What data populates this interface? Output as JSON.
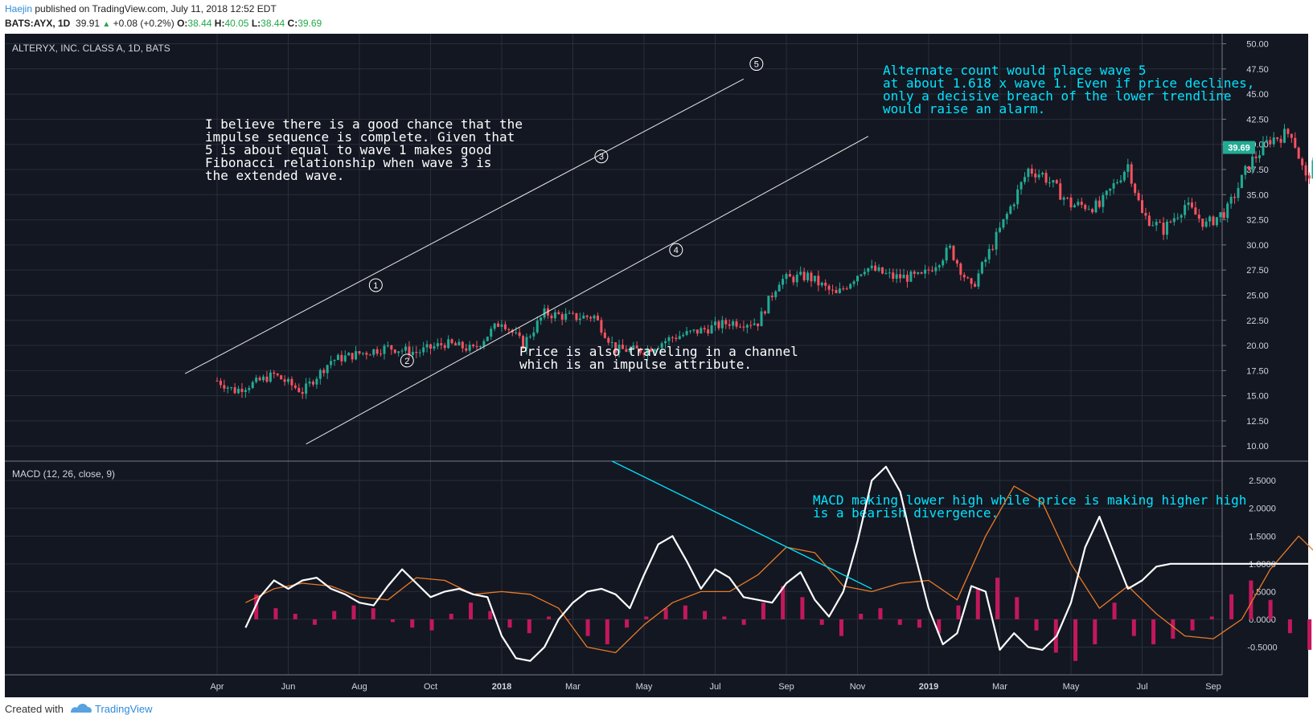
{
  "header": {
    "author": "Haejin",
    "published": " published on TradingView.com, July 11, 2018 12:52 EDT",
    "symbol": "BATS:AYX, 1D",
    "last": "39.91",
    "change": "+0.08 (+0.2%)",
    "o_label": "O:",
    "open": "38.44",
    "h_label": "H:",
    "high": "40.05",
    "l_label": "L:",
    "low": "38.44",
    "c_label": "C:",
    "close": "39.69"
  },
  "footer": {
    "created_with": "Created with",
    "brand": "TradingView"
  },
  "colors": {
    "background": "#131722",
    "grid": "#2a2e39",
    "up": "#22ab94",
    "down": "#f7525f",
    "macd_line": "#ffffff",
    "signal_line": "#e87b26",
    "histogram": "#c2185b",
    "annotation": "#00e5ff"
  },
  "chart_data": [
    {
      "type": "candlestick",
      "title": "ALTERYX, INC. CLASS A, 1D, BATS",
      "x_ticks": [
        "Apr",
        "Jun",
        "Aug",
        "Oct",
        "2018",
        "Mar",
        "May",
        "Jul",
        "Sep",
        "Nov",
        "2019",
        "Mar",
        "May",
        "Jul",
        "Sep"
      ],
      "y_ticks": [
        "50.00",
        "47.50",
        "45.00",
        "42.50",
        "40.00",
        "37.50",
        "35.00",
        "32.50",
        "30.00",
        "27.50",
        "25.00",
        "22.50",
        "20.00",
        "17.50",
        "15.00",
        "12.50",
        "10.00"
      ],
      "ylim": [
        8.5,
        51
      ],
      "last_price_label": "39.69",
      "grid": true,
      "series_closes": [
        {
          "x": 0.0,
          "y": 16.5
        },
        {
          "x": 0.25,
          "y": 15.5
        },
        {
          "x": 0.5,
          "y": 16.2
        },
        {
          "x": 0.8,
          "y": 17.1
        },
        {
          "x": 1.2,
          "y": 15.4
        },
        {
          "x": 1.6,
          "y": 18.5
        },
        {
          "x": 2.0,
          "y": 19.2
        },
        {
          "x": 2.4,
          "y": 19.8
        },
        {
          "x": 2.8,
          "y": 19.3
        },
        {
          "x": 3.2,
          "y": 20.2
        },
        {
          "x": 3.6,
          "y": 19.6
        },
        {
          "x": 4.0,
          "y": 22.5
        },
        {
          "x": 4.3,
          "y": 20.1
        },
        {
          "x": 4.6,
          "y": 23.2
        },
        {
          "x": 5.0,
          "y": 22.8
        },
        {
          "x": 5.3,
          "y": 22.9
        },
        {
          "x": 5.6,
          "y": 19.6
        },
        {
          "x": 6.0,
          "y": 19.5
        },
        {
          "x": 6.4,
          "y": 20.8
        },
        {
          "x": 6.8,
          "y": 21.5
        },
        {
          "x": 7.2,
          "y": 22.3
        },
        {
          "x": 7.6,
          "y": 22.3
        },
        {
          "x": 7.9,
          "y": 26.5
        },
        {
          "x": 8.3,
          "y": 26.9
        },
        {
          "x": 8.7,
          "y": 25.0
        },
        {
          "x": 9.1,
          "y": 27.8
        },
        {
          "x": 9.5,
          "y": 26.8
        },
        {
          "x": 9.9,
          "y": 26.8
        },
        {
          "x": 10.3,
          "y": 29.6
        },
        {
          "x": 10.6,
          "y": 25.6
        },
        {
          "x": 11.0,
          "y": 31.5
        },
        {
          "x": 11.2,
          "y": 34.5
        },
        {
          "x": 11.4,
          "y": 37.5
        },
        {
          "x": 11.6,
          "y": 37.0
        },
        {
          "x": 12.0,
          "y": 34.0
        },
        {
          "x": 12.4,
          "y": 33.8
        },
        {
          "x": 12.8,
          "y": 38.0
        },
        {
          "x": 13.0,
          "y": 33.0
        },
        {
          "x": 13.3,
          "y": 31.5
        },
        {
          "x": 13.6,
          "y": 34.0
        },
        {
          "x": 13.9,
          "y": 32.0
        },
        {
          "x": 14.2,
          "y": 33.5
        },
        {
          "x": 14.5,
          "y": 38.0
        },
        {
          "x": 14.8,
          "y": 40.5
        },
        {
          "x": 15.1,
          "y": 41.2
        },
        {
          "x": 15.3,
          "y": 36.5
        },
        {
          "x": 15.5,
          "y": 39.0
        },
        {
          "x": 15.7,
          "y": 40.5
        },
        {
          "x": 15.9,
          "y": 39.7
        }
      ]
    },
    {
      "type": "line",
      "title": "MACD (12, 26, close, 9)",
      "y_ticks": [
        "2.5000",
        "2.0000",
        "1.5000",
        "1.0000",
        "0.5000",
        "0.0000",
        "-0.5000"
      ],
      "ylim": [
        -1.0,
        2.85
      ],
      "series": [
        {
          "x": [
            0.4,
            0.6,
            0.8,
            1.0,
            1.2,
            1.4,
            1.6,
            1.8,
            2.0,
            2.2,
            2.4,
            2.6,
            2.8,
            3.0,
            3.2,
            3.4,
            3.6,
            3.8,
            4.0,
            4.2,
            4.4,
            4.6,
            4.8,
            5.0,
            5.2,
            5.4,
            5.6,
            5.8,
            6.0,
            6.2,
            6.4,
            6.6,
            6.8,
            7.0,
            7.2,
            7.4,
            7.6,
            7.8,
            8.0,
            8.2,
            8.4,
            8.6,
            8.8,
            9.0,
            9.2,
            9.4,
            9.6,
            9.8,
            10.0,
            10.2,
            10.4,
            10.6,
            10.8,
            11.0,
            11.2,
            11.4,
            11.6,
            11.8,
            12.0,
            12.2,
            12.4,
            12.6,
            12.8,
            13.0,
            13.2,
            13.4,
            13.6,
            13.8,
            14.0,
            14.2,
            14.4,
            14.6,
            14.8,
            15.0,
            15.2,
            15.4,
            15.6,
            15.8,
            15.9
          ],
          "values": [
            -0.15,
            0.4,
            0.7,
            0.55,
            0.7,
            0.75,
            0.55,
            0.45,
            0.3,
            0.25,
            0.6,
            0.9,
            0.65,
            0.4,
            0.5,
            0.55,
            0.45,
            0.4,
            -0.3,
            -0.7,
            -0.75,
            -0.5,
            0.0,
            0.3,
            0.5,
            0.55,
            0.45,
            0.2,
            0.8,
            1.35,
            1.5,
            1.05,
            0.55,
            0.9,
            0.75,
            0.4,
            0.35,
            0.3,
            0.65,
            0.85,
            0.35,
            0.05,
            0.5,
            1.4,
            2.5,
            2.75,
            2.3,
            1.2,
            0.2,
            -0.45,
            -0.25,
            0.6,
            0.5,
            -0.55,
            -0.25,
            -0.5,
            -0.55,
            -0.3,
            0.3,
            1.3,
            1.85,
            1.2,
            0.55,
            0.7,
            0.95,
            1.0,
            1.0,
            1.0,
            1.0,
            1.0,
            1.0,
            1.0,
            1.0,
            1.0,
            1.0,
            1.0,
            1.0,
            1.0,
            1.0
          ]
        },
        {
          "x": [
            0.4,
            0.8,
            1.2,
            1.6,
            2.0,
            2.4,
            2.8,
            3.2,
            3.6,
            4.0,
            4.4,
            4.8,
            5.2,
            5.6,
            6.0,
            6.4,
            6.8,
            7.2,
            7.6,
            8.0,
            8.4,
            8.8,
            9.2,
            9.6,
            10.0,
            10.4,
            10.8,
            11.2,
            11.6,
            12.0,
            12.4,
            12.8,
            13.2,
            13.6,
            14.0,
            14.4,
            14.8,
            15.2,
            15.6,
            15.9
          ],
          "values": [
            0.3,
            0.55,
            0.65,
            0.6,
            0.4,
            0.35,
            0.75,
            0.7,
            0.45,
            0.5,
            0.45,
            0.2,
            -0.5,
            -0.6,
            -0.1,
            0.3,
            0.5,
            0.5,
            0.8,
            1.3,
            1.2,
            0.6,
            0.5,
            0.65,
            0.7,
            0.35,
            1.5,
            2.4,
            2.1,
            1.0,
            0.2,
            0.6,
            0.1,
            -0.3,
            -0.35,
            0.0,
            0.9,
            1.5,
            1.0,
            0.95
          ]
        }
      ],
      "histogram": [
        0.45,
        0.2,
        0.1,
        -0.1,
        0.15,
        0.25,
        0.2,
        -0.05,
        -0.15,
        -0.2,
        0.1,
        0.3,
        0.15,
        -0.15,
        -0.25,
        0.05,
        0.0,
        -0.3,
        -0.45,
        -0.15,
        0.05,
        0.2,
        0.25,
        0.15,
        0.05,
        -0.1,
        0.3,
        0.6,
        0.4,
        -0.1,
        -0.3,
        0.1,
        0.2,
        -0.1,
        -0.15,
        -0.25,
        0.25,
        0.55,
        0.75,
        0.4,
        -0.2,
        -0.6,
        -0.75,
        -0.45,
        0.3,
        -0.3,
        -0.45,
        -0.35,
        -0.2,
        0.05,
        0.45,
        0.7,
        0.35,
        -0.25,
        -0.55,
        -0.3,
        0.1
      ]
    }
  ],
  "annotations": {
    "main_left": [
      "I believe there is a good chance that the",
      "impulse sequence is complete. Given that",
      "5 is about equal to wave 1 makes good",
      "Fibonacci relationship when wave 3 is",
      "the extended wave."
    ],
    "main_right": [
      "Alternate count would place wave 5",
      "at about 1.618 x wave 1.  Even if price declines,",
      "only a decisive breach of the lower trendline",
      "would raise an alarm."
    ],
    "channel": [
      "Price is also traveling in a channel",
      "which is an impulse attribute."
    ],
    "macd_note": [
      "MACD making lower high while price is making higher high",
      "is a bearish divergence."
    ],
    "wave_labels": [
      "1",
      "2",
      "3",
      "4",
      "5"
    ]
  }
}
